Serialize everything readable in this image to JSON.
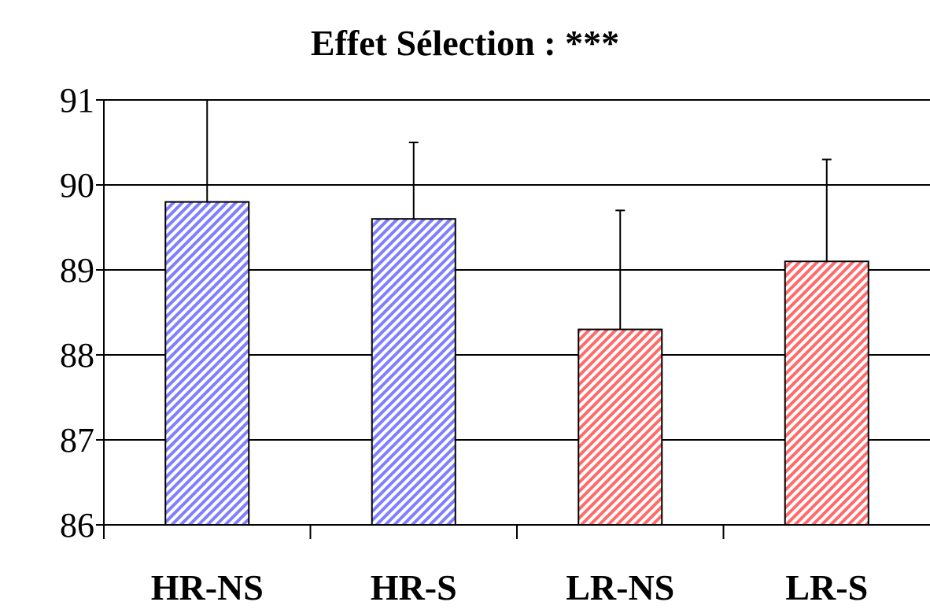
{
  "chart_data": {
    "type": "bar",
    "title": "Effet Sélection : ***",
    "xlabel": "",
    "ylabel": "",
    "categories": [
      "HR-NS",
      "HR-S",
      "LR-NS",
      "LR-S"
    ],
    "values": [
      89.8,
      89.6,
      88.3,
      89.1
    ],
    "error_upper": [
      91.0,
      90.5,
      89.7,
      90.3
    ],
    "ylim": [
      86,
      91
    ],
    "yticks": [
      "86",
      "87",
      "88",
      "89",
      "90",
      "91"
    ],
    "grid": true,
    "legend": "none",
    "colors": {
      "HR": "#7f7fff",
      "LR": "#ff6a6a",
      "grid": "#000000"
    },
    "bar_pattern": "diagonal-hatch"
  }
}
